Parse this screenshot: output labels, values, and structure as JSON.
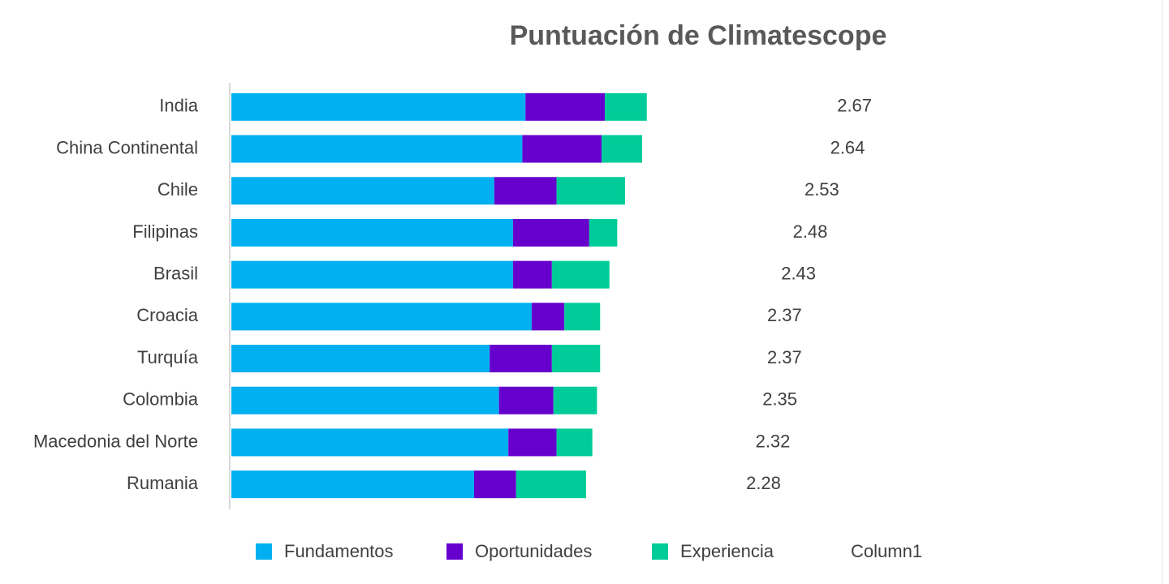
{
  "chart_data": {
    "type": "stacked-hbar",
    "title": "Puntuación de Climatescope",
    "categories": [
      "India",
      "China Continental",
      "Chile",
      "Filipinas",
      "Brasil",
      "Croacia",
      "Turquía",
      "Colombia",
      "Macedonia del Norte",
      "Rumania"
    ],
    "xlim": [
      0,
      6
    ],
    "series": [
      {
        "name": "Fundamentos",
        "color": "#00b0f0",
        "values": [
          1.89,
          1.87,
          1.69,
          1.81,
          1.81,
          1.93,
          1.66,
          1.72,
          1.78,
          1.56
        ]
      },
      {
        "name": "Oportunidades",
        "color": "#6600cc",
        "values": [
          0.51,
          0.51,
          0.4,
          0.49,
          0.25,
          0.21,
          0.4,
          0.35,
          0.31,
          0.27
        ]
      },
      {
        "name": "Experiencia",
        "color": "#00cc99",
        "values": [
          0.27,
          0.26,
          0.44,
          0.18,
          0.37,
          0.23,
          0.31,
          0.28,
          0.23,
          0.45
        ]
      },
      {
        "name": "Column1",
        "color": "none",
        "data_labels": true,
        "values": [
          2.67,
          2.64,
          2.53,
          2.48,
          2.43,
          2.37,
          2.37,
          2.35,
          2.32,
          2.28
        ]
      }
    ]
  }
}
